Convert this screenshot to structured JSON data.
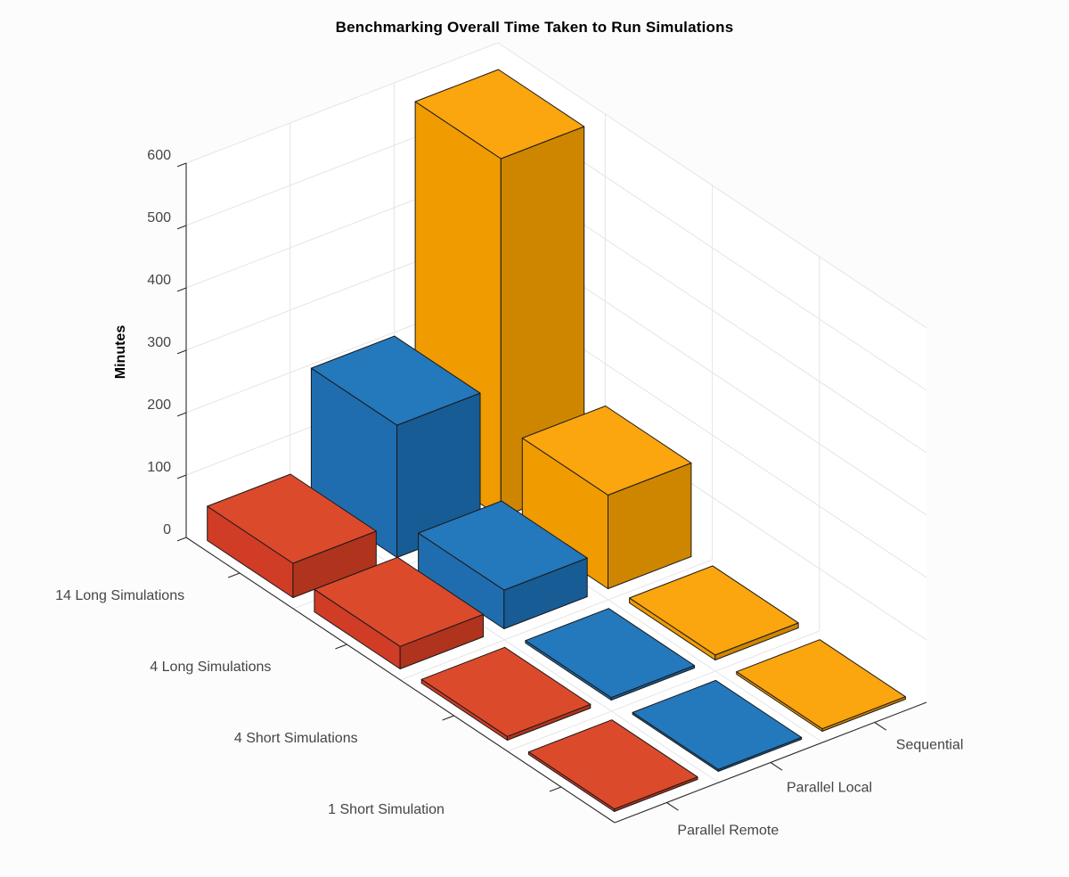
{
  "chart_data": {
    "type": "bar",
    "subtype": "3d-grouped-bar (MATLAB bar3 style)",
    "title": "Benchmarking Overall Time Taken to Run Simulations",
    "ylabel": "Minutes",
    "units": "minutes",
    "ylim": [
      0,
      600
    ],
    "y_ticks": [
      0,
      100,
      200,
      300,
      400,
      500,
      600
    ],
    "row_categories": [
      "14 Long Simulations",
      "4 Long Simulations",
      "4 Short Simulations",
      "1 Short Simulation"
    ],
    "col_categories": [
      "Parallel Remote",
      "Parallel Local",
      "Sequential"
    ],
    "series": [
      {
        "name": "Parallel Remote",
        "values": [
          55,
          36,
          6,
          4
        ],
        "face_colors": {
          "top": "#DC4A2C",
          "left": "#D03C25",
          "front": "#B0331D"
        }
      },
      {
        "name": "Parallel Local",
        "values": [
          212,
          62,
          4,
          3
        ],
        "face_colors": {
          "top": "#2478BC",
          "left": "#1F6DAE",
          "front": "#175C94"
        }
      },
      {
        "name": "Sequential",
        "values": [
          575,
          150,
          8,
          4
        ],
        "face_colors": {
          "top": "#FBA50F",
          "left": "#F09B00",
          "front": "#CE8600"
        }
      }
    ],
    "grid": true,
    "legend": "none",
    "view": "3-D perspective, azimuth -37.5, elevation 30"
  },
  "colors": {
    "background": "#FCFCFC",
    "wall": "#FFFFFF",
    "grid": "#E5E5E5",
    "axis_line": "#2B2B2B",
    "tick_label": "#454545",
    "bar_edge": "#1A1A1A",
    "title": "#000000"
  }
}
